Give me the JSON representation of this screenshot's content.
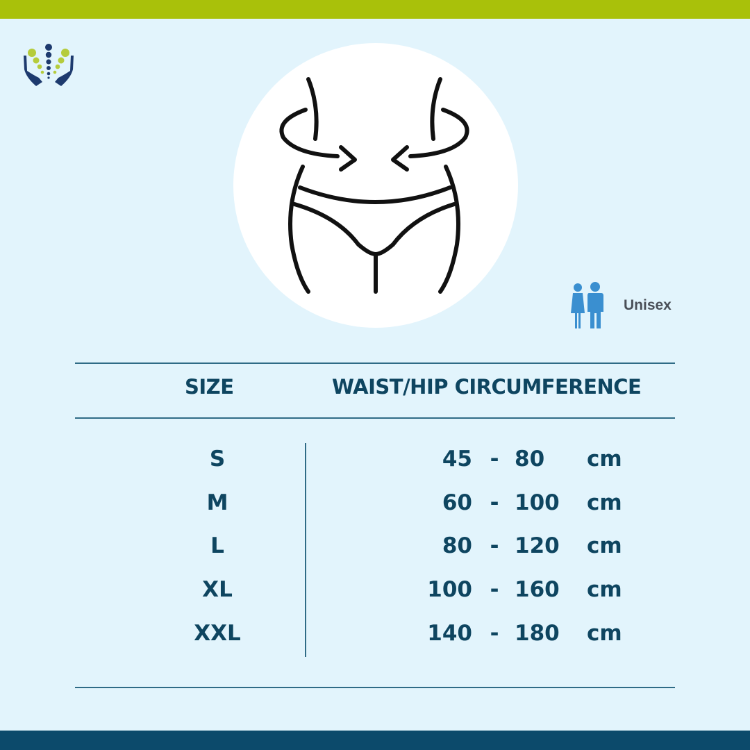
{
  "colors": {
    "top_bar": "#a9c10a",
    "bottom_bar": "#0c4a6b",
    "background": "#e2f4fc",
    "text": "#0e4560",
    "unisex_icon": "#3a8fd0"
  },
  "badge": {
    "icon": "unisex-people-icon",
    "label": "Unisex"
  },
  "table": {
    "headers": {
      "size": "SIZE",
      "measure": "WAIST/HIP CIRCUMFERENCE"
    },
    "rows": [
      {
        "size": "S",
        "min": "45",
        "sep": "-",
        "max": "80",
        "unit": "cm"
      },
      {
        "size": "M",
        "min": "60",
        "sep": "-",
        "max": "100",
        "unit": "cm"
      },
      {
        "size": "L",
        "min": "80",
        "sep": "-",
        "max": "120",
        "unit": "cm"
      },
      {
        "size": "XL",
        "min": "100",
        "sep": "-",
        "max": "160",
        "unit": "cm"
      },
      {
        "size": "XXL",
        "min": "140",
        "sep": "-",
        "max": "180",
        "unit": "cm"
      }
    ]
  }
}
